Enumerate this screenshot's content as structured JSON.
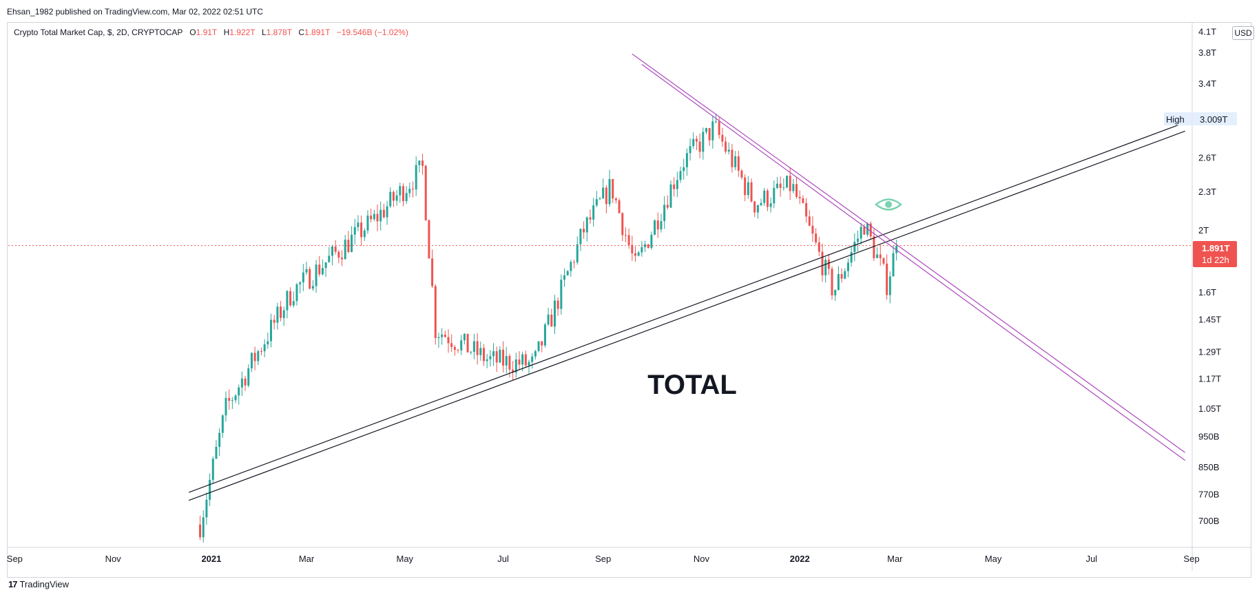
{
  "header": {
    "published": "Ehsan_1982 published on TradingView.com, Mar 02, 2022 02:51 UTC"
  },
  "legend": {
    "symbol": "Crypto Total Market Cap, $, 2D, CRYPTOCAP",
    "o_key": "O",
    "o_val": "1.91T",
    "h_key": "H",
    "h_val": "1.922T",
    "l_key": "L",
    "l_val": "1.878T",
    "c_key": "C",
    "c_val": "1.891T",
    "change": "−19.546B (−1.02%)"
  },
  "currency_button": "USD",
  "annotation_text": "TOTAL",
  "high_marker": {
    "label": "High",
    "value": "3.009T"
  },
  "last_price": {
    "value": "1.891T",
    "countdown": "1d 22h"
  },
  "footer": {
    "brand": "TradingView"
  },
  "colors": {
    "up": "#26a69a",
    "down": "#ef5350",
    "trend_black": "#131722",
    "trend_purple": "#ab47bc",
    "price_line": "#ef5350",
    "high_bg": "#e3effd"
  },
  "chart_data": {
    "type": "candlestick",
    "title": "Crypto Total Market Cap, $, 2D, CRYPTOCAP",
    "y_scale": "log",
    "y_tick_labels": [
      "4.1T",
      "3.8T",
      "3.4T",
      "3.009T",
      "2.6T",
      "2.3T",
      "2T",
      "1.891T",
      "1.6T",
      "1.45T",
      "1.29T",
      "1.17T",
      "1.05T",
      "950B",
      "850B",
      "770B",
      "700B"
    ],
    "y_ticks": [
      4.1,
      3.8,
      3.4,
      2.6,
      2.3,
      2.0,
      1.6,
      1.45,
      1.29,
      1.17,
      1.05,
      0.95,
      0.85,
      0.77,
      0.7
    ],
    "x_tick_labels": [
      "Sep",
      "Nov",
      "2021",
      "Mar",
      "May",
      "Jul",
      "Sep",
      "Nov",
      "2022",
      "Mar",
      "May",
      "Jul",
      "Sep"
    ],
    "x_tick_dates": [
      "2020-09-01",
      "2020-11-01",
      "2021-01-01",
      "2021-03-01",
      "2021-05-01",
      "2021-07-01",
      "2021-09-01",
      "2021-11-01",
      "2022-01-01",
      "2022-03-01",
      "2022-05-01",
      "2022-07-01",
      "2022-09-01"
    ],
    "x_range": [
      "2020-08-28",
      "2022-09-01"
    ],
    "y_range": [
      0.64,
      4.2
    ],
    "key_points": [
      {
        "date": "2020-12-25",
        "value": 0.69
      },
      {
        "date": "2021-01-10",
        "value": 1.05
      },
      {
        "date": "2021-02-20",
        "value": 1.6
      },
      {
        "date": "2021-04-14",
        "value": 2.1
      },
      {
        "date": "2021-05-12",
        "value": 2.5
      },
      {
        "date": "2021-05-20",
        "value": 1.4
      },
      {
        "date": "2021-06-22",
        "value": 1.25
      },
      {
        "date": "2021-07-20",
        "value": 1.23
      },
      {
        "date": "2021-08-20",
        "value": 2.0
      },
      {
        "date": "2021-09-06",
        "value": 2.35
      },
      {
        "date": "2021-09-21",
        "value": 1.75
      },
      {
        "date": "2021-10-20",
        "value": 2.55
      },
      {
        "date": "2021-11-09",
        "value": 2.9
      },
      {
        "date": "2021-12-04",
        "value": 2.2
      },
      {
        "date": "2021-12-27",
        "value": 2.35
      },
      {
        "date": "2022-01-22",
        "value": 1.6
      },
      {
        "date": "2022-02-10",
        "value": 2.05
      },
      {
        "date": "2022-02-24",
        "value": 1.65
      },
      {
        "date": "2022-03-02",
        "value": 1.89
      }
    ],
    "last_close": 1.891,
    "high_value": 3.009,
    "trendlines": [
      {
        "color": "black",
        "from": {
          "date": "2020-12-18",
          "value": 0.775
        },
        "to": {
          "date": "2022-08-28",
          "value": 2.95
        }
      },
      {
        "color": "black",
        "from": {
          "date": "2020-12-18",
          "value": 0.753
        },
        "to": {
          "date": "2022-08-28",
          "value": 2.86
        }
      },
      {
        "color": "purple",
        "from": {
          "date": "2021-09-19",
          "value": 3.78
        },
        "to": {
          "date": "2022-08-28",
          "value": 0.895
        }
      },
      {
        "color": "purple",
        "from": {
          "date": "2021-09-25",
          "value": 3.64
        },
        "to": {
          "date": "2022-08-28",
          "value": 0.87
        }
      }
    ]
  }
}
